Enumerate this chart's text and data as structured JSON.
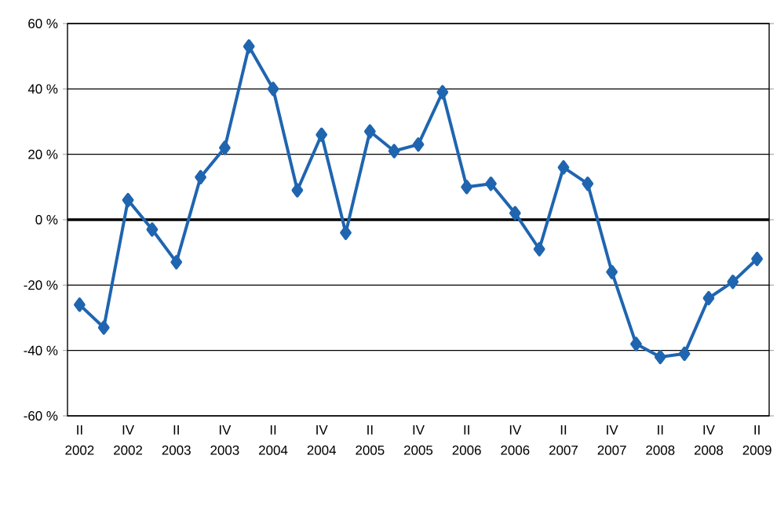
{
  "chart_data": {
    "type": "line",
    "categories": [
      "II 2002",
      null,
      "IV 2002",
      null,
      "II 2003",
      null,
      "IV 2003",
      null,
      "II 2004",
      null,
      "IV 2004",
      null,
      "II 2005",
      null,
      "IV 2005",
      null,
      "II 2006",
      null,
      "IV 2006",
      null,
      "II 2007",
      null,
      "IV 2007",
      null,
      "II 2008",
      null,
      "IV 2008",
      null,
      "II 2009"
    ],
    "values": [
      -26,
      -33,
      6,
      -3,
      -13,
      13,
      22,
      53,
      40,
      9,
      26,
      -4,
      27,
      21,
      23,
      39,
      10,
      11,
      2,
      -9,
      16,
      11,
      -16,
      -38,
      -42,
      -41,
      -24,
      -19,
      -12
    ],
    "color": "#1f65b0",
    "ylim": [
      -60,
      60
    ],
    "yticks": [
      {
        "value": -60,
        "label": "-60 %"
      },
      {
        "value": -40,
        "label": "-40 %"
      },
      {
        "value": -20,
        "label": "-20 %"
      },
      {
        "value": 0,
        "label": "0 %"
      },
      {
        "value": 20,
        "label": "20 %"
      },
      {
        "value": 40,
        "label": "40 %"
      },
      {
        "value": 60,
        "label": "60 %"
      }
    ],
    "grid": "y",
    "marker": "diamond",
    "line_style": "solid"
  }
}
